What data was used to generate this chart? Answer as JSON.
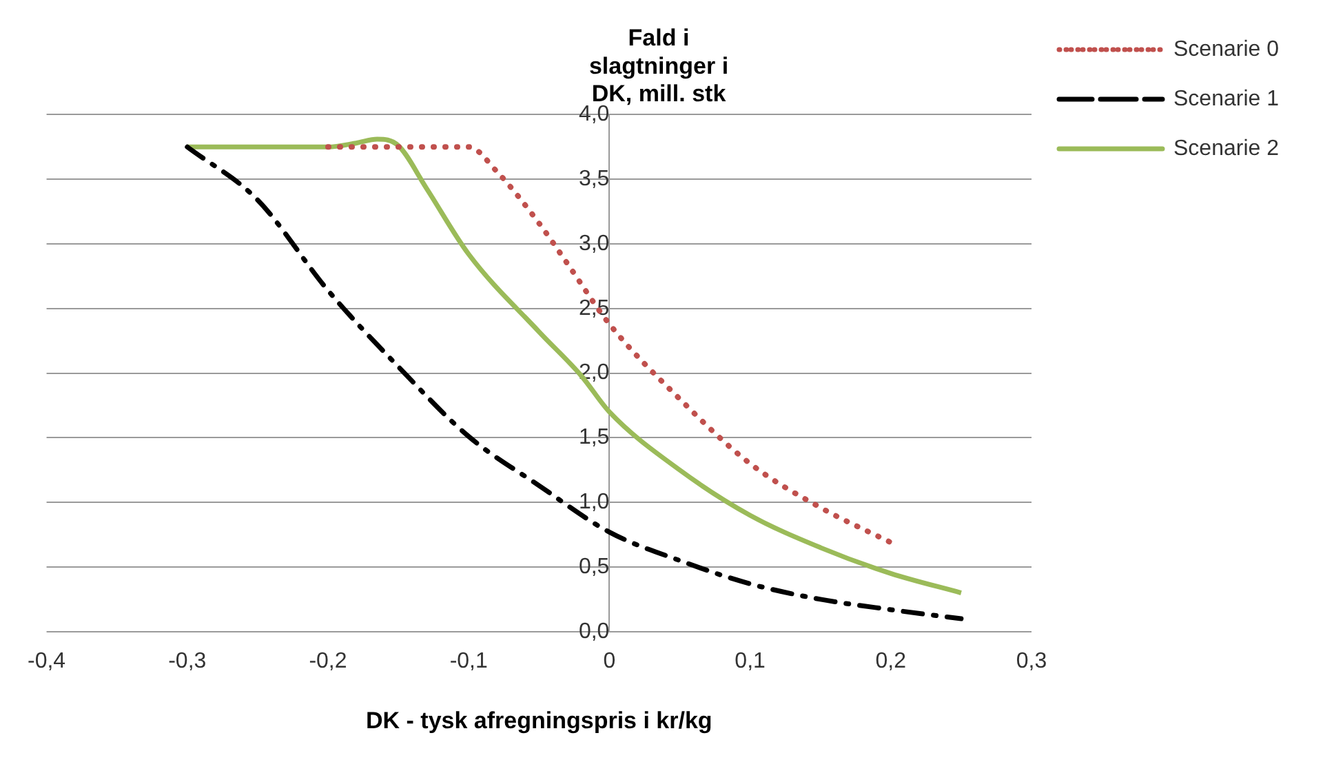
{
  "chart_data": {
    "type": "line",
    "title": "Fald i slagtninger i DK, mill. stk",
    "xlabel": "DK - tysk afregningspris i kr/kg",
    "xlim": [
      -0.4,
      0.3
    ],
    "xticks": [
      {
        "value": -0.4,
        "label": "-0,4"
      },
      {
        "value": -0.3,
        "label": "-0,3"
      },
      {
        "value": -0.2,
        "label": "-0,2"
      },
      {
        "value": -0.1,
        "label": "-0,1"
      },
      {
        "value": 0,
        "label": "0"
      },
      {
        "value": 0.1,
        "label": "0,1"
      },
      {
        "value": 0.2,
        "label": "0,2"
      },
      {
        "value": 0.3,
        "label": "0,3"
      }
    ],
    "ylim": [
      0,
      4
    ],
    "yticks": [
      {
        "value": 0,
        "label": "0,0"
      },
      {
        "value": 0.5,
        "label": "0,5"
      },
      {
        "value": 1,
        "label": "1,0"
      },
      {
        "value": 1.5,
        "label": "1,5"
      },
      {
        "value": 2,
        "label": "2,0"
      },
      {
        "value": 2.5,
        "label": "2,5"
      },
      {
        "value": 3,
        "label": "3,0"
      },
      {
        "value": 3.5,
        "label": "3,5"
      },
      {
        "value": 4,
        "label": "4,0"
      }
    ],
    "grid": "y",
    "legend": "right",
    "marker": "none",
    "series": [
      {
        "name": "Scenarie 0",
        "color": "#c0504d",
        "line_style": "dotted",
        "x": [
          -0.2,
          -0.1,
          -0.08,
          -0.05,
          -0.03,
          0,
          0.05,
          0.1,
          0.15,
          0.2
        ],
        "values": [
          3.75,
          3.75,
          3.56,
          3.16,
          2.85,
          2.38,
          1.8,
          1.3,
          0.96,
          0.69
        ]
      },
      {
        "name": "Scenarie 1",
        "color": "#000000",
        "line_style": "dashed",
        "x": [
          -0.3,
          -0.25,
          -0.2,
          -0.15,
          -0.1,
          -0.05,
          0,
          0.05,
          0.1,
          0.15,
          0.2,
          0.25
        ],
        "values": [
          3.75,
          3.34,
          2.64,
          2.05,
          1.51,
          1.13,
          0.77,
          0.55,
          0.37,
          0.25,
          0.17,
          0.1
        ]
      },
      {
        "name": "Scenarie 2",
        "color": "#9bbb59",
        "line_style": "solid",
        "x": [
          -0.3,
          -0.2,
          -0.18,
          -0.165,
          -0.15,
          -0.13,
          -0.1,
          -0.05,
          -0.02,
          0,
          0.05,
          0.1,
          0.15,
          0.2,
          0.25
        ],
        "values": [
          3.75,
          3.75,
          3.78,
          3.81,
          3.76,
          3.43,
          2.92,
          2.32,
          1.98,
          1.7,
          1.25,
          0.9,
          0.65,
          0.45,
          0.3
        ]
      }
    ]
  }
}
